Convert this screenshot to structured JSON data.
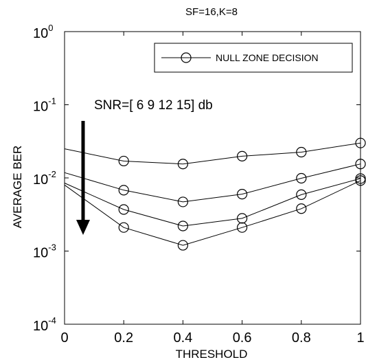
{
  "chart_data": {
    "type": "line",
    "title": "SF=16,K=8",
    "xlabel": "THRESHOLD",
    "ylabel": "AVERAGE BER",
    "xlim": [
      0,
      1
    ],
    "ylim": [
      0.0001,
      1
    ],
    "yscale": "log",
    "xticks": [
      0,
      0.2,
      0.4,
      0.6,
      0.8,
      1
    ],
    "xtick_labels": [
      "0",
      "0.2",
      "0.4",
      "0.6",
      "0.8",
      "1"
    ],
    "yticks": [
      {
        "base": "10",
        "exp": "0",
        "value": 1
      },
      {
        "base": "10",
        "exp": "-1",
        "value": 0.1
      },
      {
        "base": "10",
        "exp": "-2",
        "value": 0.01
      },
      {
        "base": "10",
        "exp": "-3",
        "value": 0.001
      },
      {
        "base": "10",
        "exp": "-4",
        "value": 0.0001
      }
    ],
    "grid": false,
    "legend": {
      "placement": "top-right",
      "label": "NULL ZONE DECISION",
      "marker": "circle"
    },
    "annotation": {
      "text": "SNR=[ 6 9 12 15] db"
    },
    "x": [
      0,
      0.2,
      0.4,
      0.6,
      0.8,
      1
    ],
    "series": [
      {
        "values": [
          0.025,
          0.017,
          0.0155,
          0.0198,
          0.0225,
          0.03
        ]
      },
      {
        "values": [
          0.0118,
          0.0068,
          0.0047,
          0.006,
          0.0099,
          0.0155
        ]
      },
      {
        "values": [
          0.0085,
          0.0037,
          0.0022,
          0.0028,
          0.0059,
          0.0098
        ]
      },
      {
        "values": [
          0.008,
          0.0021,
          0.0012,
          0.0021,
          0.0038,
          0.0092
        ]
      }
    ],
    "colors": {
      "line": "#000000",
      "background": "#ffffff"
    }
  }
}
